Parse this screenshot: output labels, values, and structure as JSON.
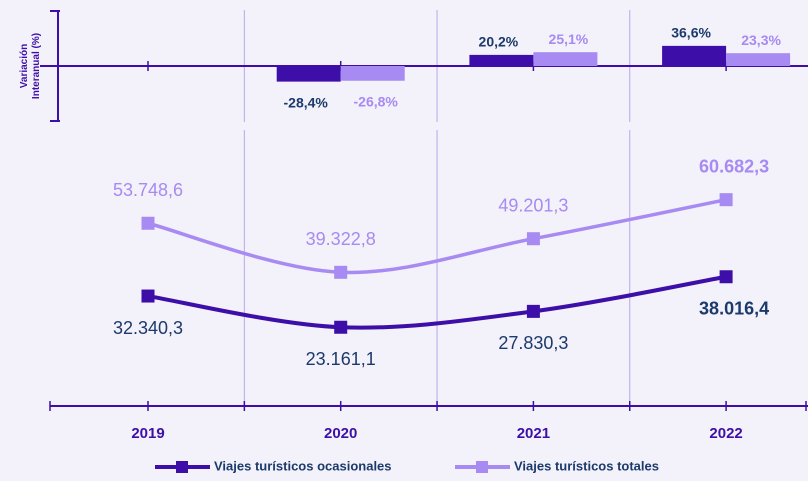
{
  "chart_data": [
    {
      "type": "bar",
      "ylabel": [
        "Variación",
        "Interanual (%)"
      ],
      "ylim": [
        -100,
        100
      ],
      "series": [
        {
          "color": "#3d0fa8",
          "label_color": "#1b3a6b",
          "values": [
            null,
            -28.4,
            20.2,
            36.6
          ],
          "value_labels": [
            null,
            "-28,4%",
            "20,2%",
            "36,6%"
          ]
        },
        {
          "color": "#a78af2",
          "label_color": "#a78af2",
          "values": [
            null,
            -26.8,
            25.1,
            23.3
          ],
          "value_labels": [
            null,
            "-26,8%",
            "25,1%",
            "23,3%"
          ]
        }
      ]
    },
    {
      "type": "line",
      "categories": [
        "2019",
        "2020",
        "2021",
        "2022"
      ],
      "ylim": [
        0,
        80000
      ],
      "series": [
        {
          "name": "Viajes turísticos ocasionales",
          "color": "#3d0fa8",
          "label_color": "#1b3a6b",
          "values": [
            32340.3,
            23161.1,
            27830.3,
            38016.4
          ],
          "value_labels": [
            "32.340,3",
            "23.161,1",
            "27.830,3",
            "38.016,4"
          ]
        },
        {
          "name": "Viajes turísticos totales",
          "color": "#a78af2",
          "label_color": "#a78af2",
          "values": [
            53748.6,
            39322.8,
            49201.3,
            60682.3
          ],
          "value_labels": [
            "53.748,6",
            "39.322,8",
            "49.201,3",
            "60.682,3"
          ]
        }
      ]
    }
  ]
}
